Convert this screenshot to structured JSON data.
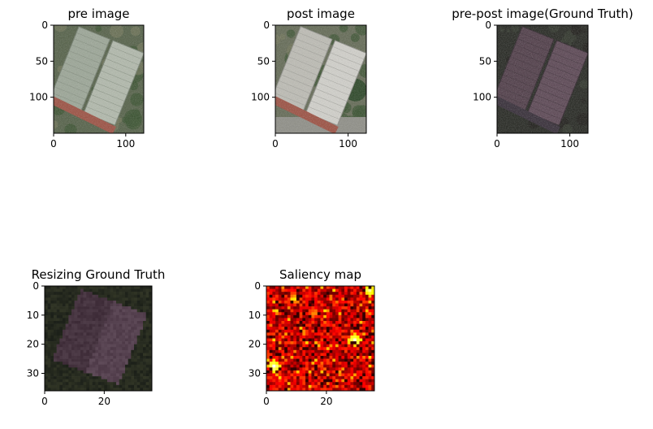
{
  "chart_data": [
    {
      "type": "heatmap",
      "title": "pre image",
      "content": "aerial-photo-pre",
      "xlim": [
        0,
        125
      ],
      "ylim": [
        0,
        150
      ],
      "xticks": [
        0,
        100
      ],
      "yticks": [
        0,
        50,
        100
      ]
    },
    {
      "type": "heatmap",
      "title": "post image",
      "content": "aerial-photo-post",
      "xlim": [
        0,
        125
      ],
      "ylim": [
        0,
        150
      ],
      "xticks": [
        0,
        100
      ],
      "yticks": [
        0,
        50,
        100
      ]
    },
    {
      "type": "heatmap",
      "title": "pre-post image(Ground Truth)",
      "content": "difference-image",
      "xlim": [
        0,
        125
      ],
      "ylim": [
        0,
        150
      ],
      "xticks": [
        0,
        100
      ],
      "yticks": [
        0,
        50,
        100
      ]
    },
    {
      "type": "heatmap",
      "title": "Resizing Ground Truth",
      "content": "resized-difference-image",
      "xlim": [
        0,
        36
      ],
      "ylim": [
        0,
        36
      ],
      "xticks": [
        0,
        20
      ],
      "yticks": [
        0,
        10,
        20,
        30
      ]
    },
    {
      "type": "heatmap",
      "title": "Saliency map",
      "content": "saliency-heatmap",
      "colormap": "hot",
      "grid_size": [
        36,
        36
      ],
      "xlim": [
        0,
        36
      ],
      "ylim": [
        0,
        36
      ],
      "xticks": [
        0,
        20
      ],
      "yticks": [
        0,
        10,
        20,
        30
      ]
    }
  ]
}
